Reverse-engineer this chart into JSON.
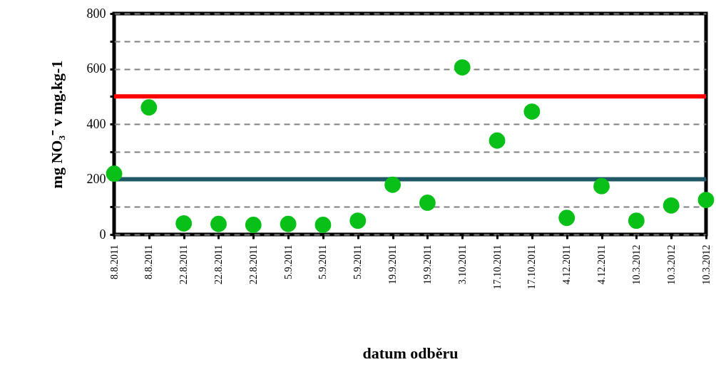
{
  "chart_data": {
    "type": "scatter",
    "xlabel": "datum odběru",
    "ylabel": "mg NO₃⁻ v mg.kg-1",
    "categories": [
      "8.8.2011",
      "8.8.2011",
      "22.8.2011",
      "22.8.2011",
      "22.8.2011",
      "5.9.2011",
      "5.9.2011",
      "5.9.2011",
      "19.9.2011",
      "19.9.2011",
      "3.10.2011",
      "17.10.2011",
      "17.10.2011",
      "4.12.2011",
      "4.12.2011",
      "10.3.2012",
      "10.3.2012",
      "10.3.2012"
    ],
    "series": [
      {
        "color": "#08c018",
        "values": [
          220,
          460,
          40,
          38,
          35,
          38,
          35,
          50,
          180,
          115,
          605,
          340,
          445,
          60,
          175,
          50,
          105,
          125
        ]
      }
    ],
    "ylim": [
      0,
      800
    ],
    "yticks": [
      0,
      {
        "value": 100,
        "label": null
      },
      200,
      {
        "value": 300,
        "label": null
      },
      400,
      {
        "value": 500,
        "label": null
      },
      600,
      {
        "value": 700,
        "label": null
      },
      800
    ],
    "ref_lines": [
      {
        "axis": "y",
        "value": 500,
        "color": "#ff0000"
      },
      {
        "axis": "y",
        "value": 200,
        "color": "#215868"
      }
    ],
    "grid": "y",
    "marker": "circle"
  }
}
